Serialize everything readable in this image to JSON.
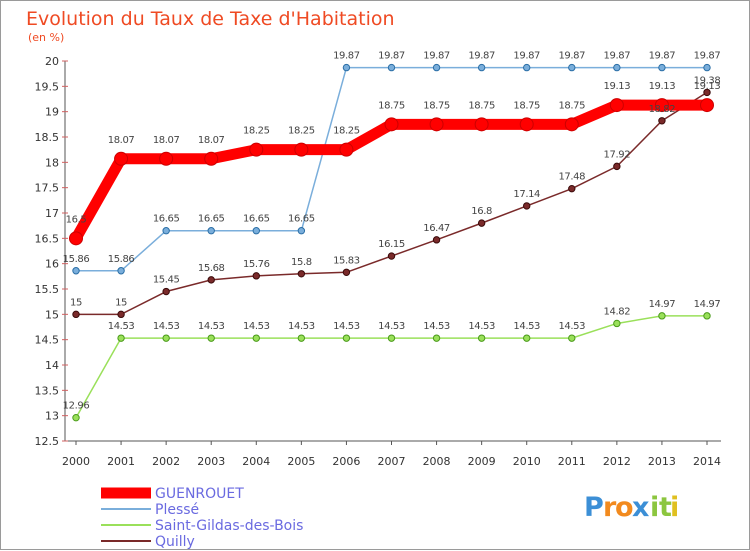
{
  "chart_data": {
    "type": "line",
    "title": "Evolution du Taux de Taxe d'Habitation",
    "subtitle": "(en %)",
    "x": [
      "2000",
      "2001",
      "2002",
      "2003",
      "2004",
      "2005",
      "2006",
      "2007",
      "2008",
      "2009",
      "2010",
      "2011",
      "2012",
      "2013",
      "2014"
    ],
    "ylim": [
      12.5,
      20
    ],
    "yticks": [
      "12.5",
      "13",
      "13.5",
      "14",
      "14.5",
      "15",
      "15.5",
      "16",
      "16.5",
      "17",
      "17.5",
      "18",
      "18.5",
      "19",
      "19.5",
      "20"
    ],
    "grid": false,
    "legend_position": "bottom-left",
    "series": [
      {
        "name": "GUENROUET",
        "color": "#ff0000",
        "values": [
          16.5,
          18.07,
          18.07,
          18.07,
          18.25,
          18.25,
          18.25,
          18.75,
          18.75,
          18.75,
          18.75,
          18.75,
          19.13,
          19.13,
          19.13
        ],
        "labels": [
          "16.5",
          "18.07",
          "18.07",
          "18.07",
          "18.25",
          "18.25",
          "18.25",
          "18.75",
          "18.75",
          "18.75",
          "18.75",
          "18.75",
          "19.13",
          "19.13",
          "19.13"
        ]
      },
      {
        "name": "Plessé",
        "color": "#7aaedb",
        "values": [
          15.86,
          15.86,
          16.65,
          16.65,
          16.65,
          16.65,
          19.87,
          19.87,
          19.87,
          19.87,
          19.87,
          19.87,
          19.87,
          19.87,
          19.87
        ],
        "labels": [
          "15.86",
          "15.86",
          "16.65",
          "16.65",
          "16.65",
          "16.65",
          "19.87",
          "19.87",
          "19.87",
          "19.87",
          "19.87",
          "19.87",
          "19.87",
          "19.87",
          "19.87"
        ]
      },
      {
        "name": "Saint-Gildas-des-Bois",
        "color": "#9ae05a",
        "values": [
          12.96,
          14.53,
          14.53,
          14.53,
          14.53,
          14.53,
          14.53,
          14.53,
          14.53,
          14.53,
          14.53,
          14.53,
          14.82,
          14.97,
          14.97
        ],
        "labels": [
          "12.96",
          "14.53",
          "14.53",
          "14.53",
          "14.53",
          "14.53",
          "14.53",
          "14.53",
          "14.53",
          "14.53",
          "14.53",
          "14.53",
          "14.82",
          "14.97",
          "14.97"
        ]
      },
      {
        "name": "Quilly",
        "color": "#7a2a2a",
        "values": [
          15,
          15,
          15.45,
          15.68,
          15.76,
          15.8,
          15.83,
          16.15,
          16.47,
          16.8,
          17.14,
          17.48,
          17.92,
          18.82,
          19.38
        ],
        "labels": [
          "15",
          "15",
          "15.45",
          "15.68",
          "15.76",
          "15.8",
          "15.83",
          "16.15",
          "16.47",
          "16.8",
          "17.14",
          "17.48",
          "17.92",
          "18.82",
          "19.38"
        ]
      }
    ]
  },
  "logo": {
    "letters": [
      "P",
      "r",
      "o",
      "x",
      "i",
      "t",
      "i"
    ],
    "colors": [
      "#3c8fd6",
      "#f28a1e",
      "#f28a1e",
      "#3c8fd6",
      "#8cc63f",
      "#8cc63f",
      "#e0c020"
    ]
  }
}
